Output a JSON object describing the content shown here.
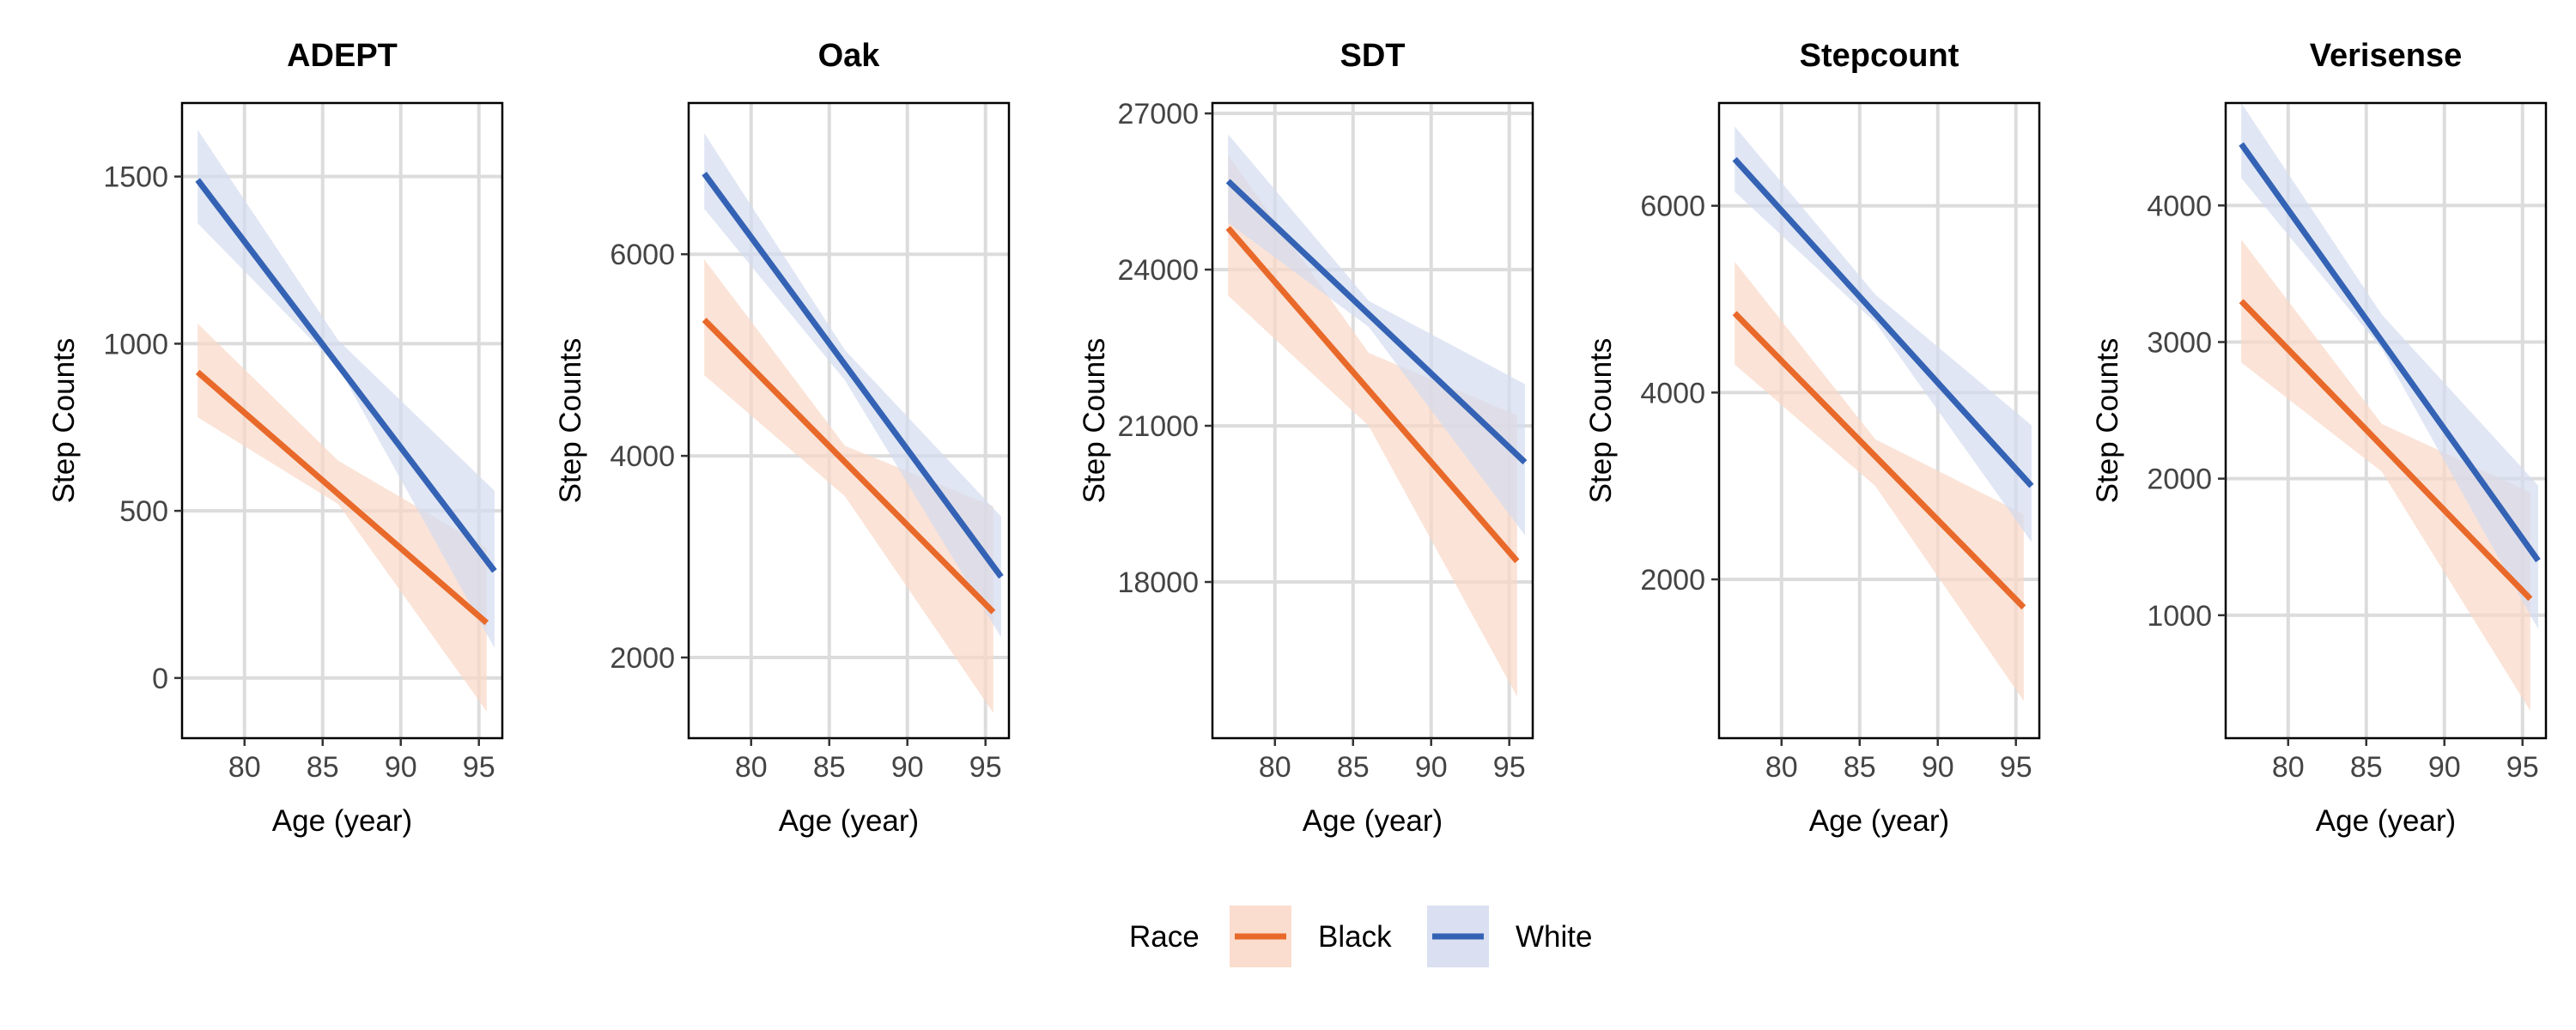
{
  "chart_data": {
    "type": "line",
    "legend": {
      "title": "Race",
      "placement": "bottom",
      "items": [
        {
          "name": "Black",
          "color": "#e8692a",
          "band_color": "#f9d7c6"
        },
        {
          "name": "White",
          "color": "#3462b4",
          "band_color": "#d3dbef"
        }
      ]
    },
    "grid": true,
    "panels": [
      {
        "title": "ADEPT",
        "xlabel": "Age (year)",
        "ylabel": "Step Counts",
        "xlim": [
          76,
          96.5
        ],
        "ylim": [
          -180,
          1720
        ],
        "xticks": [
          80,
          85,
          90,
          95
        ],
        "yticks": [
          0,
          500,
          1000,
          1500
        ],
        "ytick_labels": [
          "0",
          "500",
          "1000",
          "1500"
        ],
        "series": [
          {
            "name": "Black",
            "x": [
              77,
              95.5
            ],
            "y": [
              915,
              165
            ],
            "band": {
              "x": [
                77,
                86,
                95.5
              ],
              "lower": [
                780,
                520,
                -100
              ],
              "upper": [
                1060,
                650,
                390
              ]
            }
          },
          {
            "name": "White",
            "x": [
              77,
              96
            ],
            "y": [
              1490,
              320
            ],
            "band": {
              "x": [
                77,
                86,
                96
              ],
              "lower": [
                1360,
                930,
                90
              ],
              "upper": [
                1640,
                1010,
                560
              ]
            }
          }
        ]
      },
      {
        "title": "Oak",
        "xlabel": "Age (year)",
        "ylabel": "Step Counts",
        "xlim": [
          76,
          96.5
        ],
        "ylim": [
          1200,
          7500
        ],
        "xticks": [
          80,
          85,
          90,
          95
        ],
        "yticks": [
          2000,
          4000,
          6000
        ],
        "ytick_labels": [
          "2000",
          "4000",
          "6000"
        ],
        "series": [
          {
            "name": "Black",
            "x": [
              77,
              95.5
            ],
            "y": [
              5350,
              2450
            ],
            "band": {
              "x": [
                77,
                86,
                95.5
              ],
              "lower": [
                4800,
                3600,
                1450
              ],
              "upper": [
                5950,
                4100,
                3500
              ]
            }
          },
          {
            "name": "White",
            "x": [
              77,
              96
            ],
            "y": [
              6800,
              2800
            ],
            "band": {
              "x": [
                77,
                86,
                96
              ],
              "lower": [
                6450,
                4750,
                2200
              ],
              "upper": [
                7200,
                5050,
                3400
              ]
            }
          }
        ]
      },
      {
        "title": "SDT",
        "xlabel": "Age (year)",
        "ylabel": "Step Counts",
        "xlim": [
          76,
          96.5
        ],
        "ylim": [
          15000,
          27200
        ],
        "xticks": [
          80,
          85,
          90,
          95
        ],
        "yticks": [
          18000,
          21000,
          24000,
          27000
        ],
        "ytick_labels": [
          "18000",
          "21000",
          "24000",
          "27000"
        ],
        "series": [
          {
            "name": "Black",
            "x": [
              77,
              95.5
            ],
            "y": [
              24800,
              18400
            ],
            "band": {
              "x": [
                77,
                86,
                95.5
              ],
              "lower": [
                23500,
                21000,
                15800
              ],
              "upper": [
                26200,
                22400,
                21200
              ]
            }
          },
          {
            "name": "White",
            "x": [
              77,
              96
            ],
            "y": [
              25700,
              20300
            ],
            "band": {
              "x": [
                77,
                86,
                96
              ],
              "lower": [
                24900,
                22900,
                18900
              ],
              "upper": [
                26600,
                23400,
                21800
              ]
            }
          }
        ]
      },
      {
        "title": "Stepcount",
        "xlabel": "Age (year)",
        "ylabel": "Step Counts",
        "xlim": [
          76,
          96.5
        ],
        "ylim": [
          300,
          7100
        ],
        "xticks": [
          80,
          85,
          90,
          95
        ],
        "yticks": [
          2000,
          4000,
          6000
        ],
        "ytick_labels": [
          "2000",
          "4000",
          "6000"
        ],
        "series": [
          {
            "name": "Black",
            "x": [
              77,
              95.5
            ],
            "y": [
              4850,
              1700
            ],
            "band": {
              "x": [
                77,
                86,
                95.5
              ],
              "lower": [
                4300,
                3000,
                700
              ],
              "upper": [
                5400,
                3500,
                2700
              ]
            }
          },
          {
            "name": "White",
            "x": [
              77,
              96
            ],
            "y": [
              6500,
              3000
            ],
            "band": {
              "x": [
                77,
                86,
                96
              ],
              "lower": [
                6150,
                4750,
                2400
              ],
              "upper": [
                6850,
                5050,
                3650
              ]
            }
          }
        ]
      },
      {
        "title": "Verisense",
        "xlabel": "Age (year)",
        "ylabel": "Step Counts",
        "xlim": [
          76,
          96.5
        ],
        "ylim": [
          100,
          4750
        ],
        "xticks": [
          80,
          85,
          90,
          95
        ],
        "yticks": [
          1000,
          2000,
          3000,
          4000
        ],
        "ytick_labels": [
          "1000",
          "2000",
          "3000",
          "4000"
        ],
        "series": [
          {
            "name": "Black",
            "x": [
              77,
              95.5
            ],
            "y": [
              3300,
              1120
            ],
            "band": {
              "x": [
                77,
                86,
                95.5
              ],
              "lower": [
                2850,
                2050,
                300
              ],
              "upper": [
                3750,
                2400,
                1900
              ]
            }
          },
          {
            "name": "White",
            "x": [
              77,
              96
            ],
            "y": [
              4450,
              1400
            ],
            "band": {
              "x": [
                77,
                86,
                96
              ],
              "lower": [
                4200,
                2950,
                900
              ],
              "upper": [
                4750,
                3200,
                1950
              ]
            }
          }
        ]
      }
    ]
  }
}
